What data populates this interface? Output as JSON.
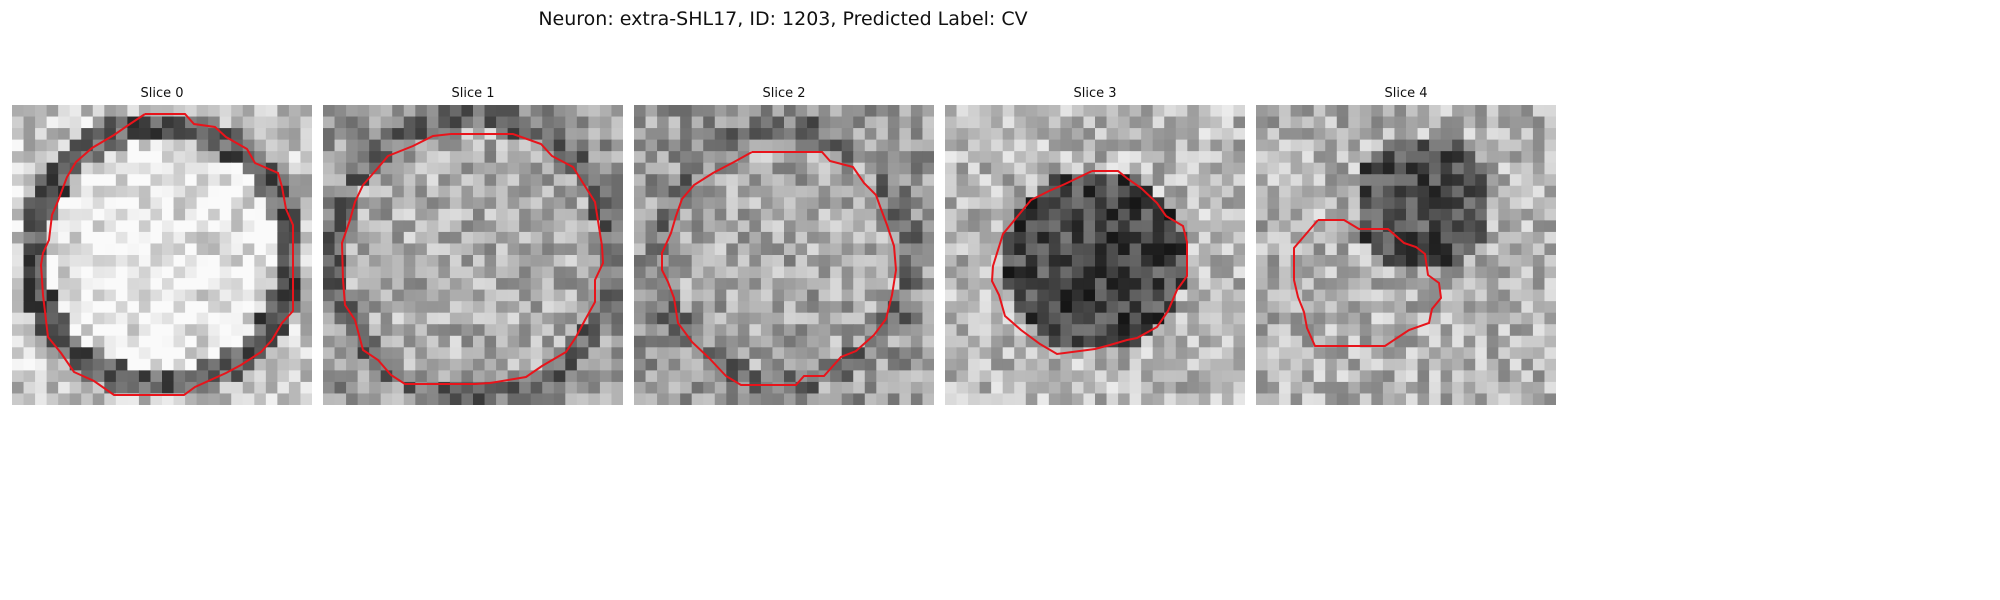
{
  "figure": {
    "title": "Neuron: extra-SHL17, ID: 1203, Predicted Label: CV"
  },
  "panels": [
    {
      "title": "Slice 0",
      "seed": 11,
      "base": "ring",
      "contour_color": "#e8141b"
    },
    {
      "title": "Slice 1",
      "seed": 23,
      "base": "disc-dark",
      "contour_color": "#e8141b"
    },
    {
      "title": "Slice 2",
      "seed": 37,
      "base": "disc-mid",
      "contour_color": "#e8141b"
    },
    {
      "title": "Slice 3",
      "seed": 51,
      "base": "dark-blob",
      "contour_color": "#e8141b"
    },
    {
      "title": "Slice 4",
      "seed": 67,
      "base": "offset",
      "contour_color": "#e8141b"
    }
  ]
}
